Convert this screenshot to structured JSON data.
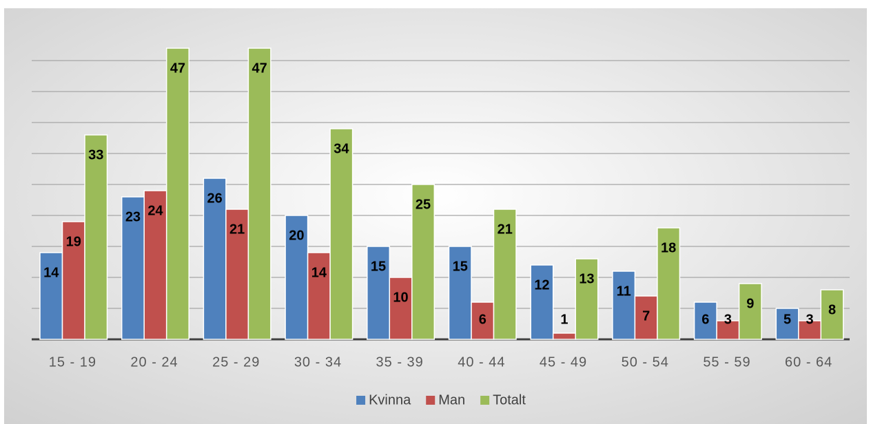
{
  "chart_data": {
    "type": "bar",
    "categories": [
      "15 - 19",
      "20 - 24",
      "25 - 29",
      "30 - 34",
      "35 - 39",
      "40 - 44",
      "45 - 49",
      "50 - 54",
      "55 - 59",
      "60 - 64"
    ],
    "series": [
      {
        "name": "Kvinna",
        "color": "#4f81bd",
        "values": [
          14,
          23,
          26,
          20,
          15,
          15,
          12,
          11,
          6,
          5
        ]
      },
      {
        "name": "Man",
        "color": "#c0504d",
        "values": [
          19,
          24,
          21,
          14,
          10,
          6,
          1,
          7,
          3,
          3
        ]
      },
      {
        "name": "Totalt",
        "color": "#9bbb59",
        "values": [
          33,
          47,
          47,
          34,
          25,
          21,
          13,
          18,
          9,
          8
        ]
      }
    ],
    "ylim": [
      0,
      50
    ],
    "yticks": [
      0,
      5,
      10,
      15,
      20,
      25,
      30,
      35,
      40,
      45
    ],
    "grid": true,
    "legend": "bottom"
  }
}
